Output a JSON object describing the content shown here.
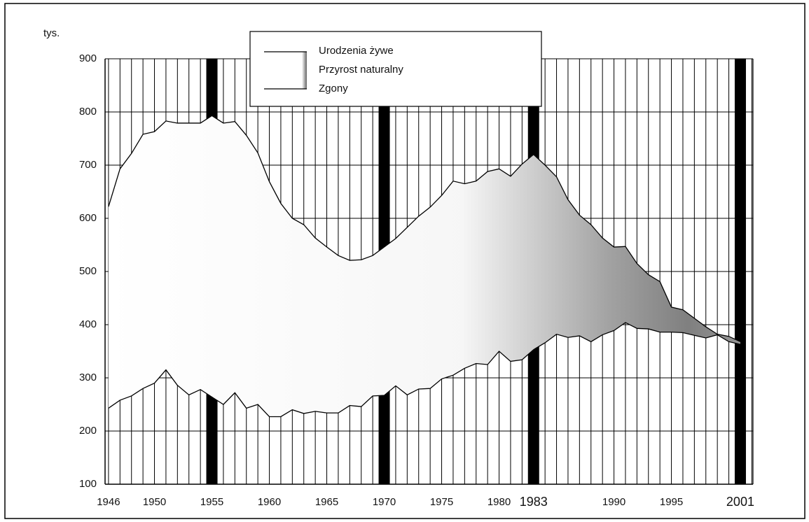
{
  "chart_data": {
    "type": "line",
    "y_unit_label": "tys.",
    "x": [
      1946,
      1947,
      1948,
      1949,
      1950,
      1951,
      1952,
      1953,
      1954,
      1955,
      1956,
      1957,
      1958,
      1959,
      1960,
      1961,
      1962,
      1963,
      1964,
      1965,
      1966,
      1967,
      1968,
      1969,
      1970,
      1971,
      1972,
      1973,
      1974,
      1975,
      1976,
      1977,
      1978,
      1979,
      1980,
      1981,
      1982,
      1983,
      1984,
      1985,
      1986,
      1987,
      1988,
      1989,
      1990,
      1991,
      1992,
      1993,
      1994,
      1995,
      1996,
      1997,
      1998,
      1999,
      2000,
      2001
    ],
    "series": [
      {
        "name": "Urodzenia żywe",
        "color": "#000000",
        "values": [
          622,
          693,
          722,
          758,
          763,
          783,
          779,
          779,
          779,
          793,
          779,
          782,
          756,
          723,
          669,
          628,
          600,
          588,
          563,
          546,
          530,
          521,
          522,
          530,
          546,
          562,
          583,
          604,
          621,
          643,
          670,
          665,
          670,
          688,
          693,
          679,
          702,
          720,
          700,
          678,
          635,
          606,
          588,
          563,
          546,
          547,
          515,
          494,
          481,
          433,
          428,
          412,
          396,
          382,
          378,
          368
        ]
      },
      {
        "name": "Zgony",
        "color": "#000000",
        "values": [
          243,
          258,
          266,
          280,
          290,
          315,
          286,
          268,
          278,
          264,
          250,
          272,
          243,
          250,
          227,
          227,
          240,
          233,
          237,
          234,
          234,
          248,
          246,
          266,
          267,
          285,
          268,
          279,
          280,
          298,
          305,
          318,
          327,
          325,
          350,
          331,
          334,
          353,
          366,
          382,
          376,
          379,
          368,
          381,
          389,
          404,
          393,
          392,
          386,
          386,
          385,
          380,
          375,
          381,
          368,
          363
        ]
      }
    ],
    "area_label": "Przyrost naturalny",
    "area_color": "#555555",
    "xlim": [
      1945.7,
      2002.1
    ],
    "xticks": [
      1946,
      1950,
      1955,
      1960,
      1965,
      1970,
      1975,
      1980,
      1983,
      1990,
      1995,
      2001
    ],
    "x_grid_step": 1,
    "highlight_years": [
      1955,
      1970,
      1983,
      2001
    ],
    "ylim": [
      100,
      900
    ],
    "yticks": [
      100,
      200,
      300,
      400,
      500,
      600,
      700,
      800,
      900
    ],
    "grid": true
  }
}
